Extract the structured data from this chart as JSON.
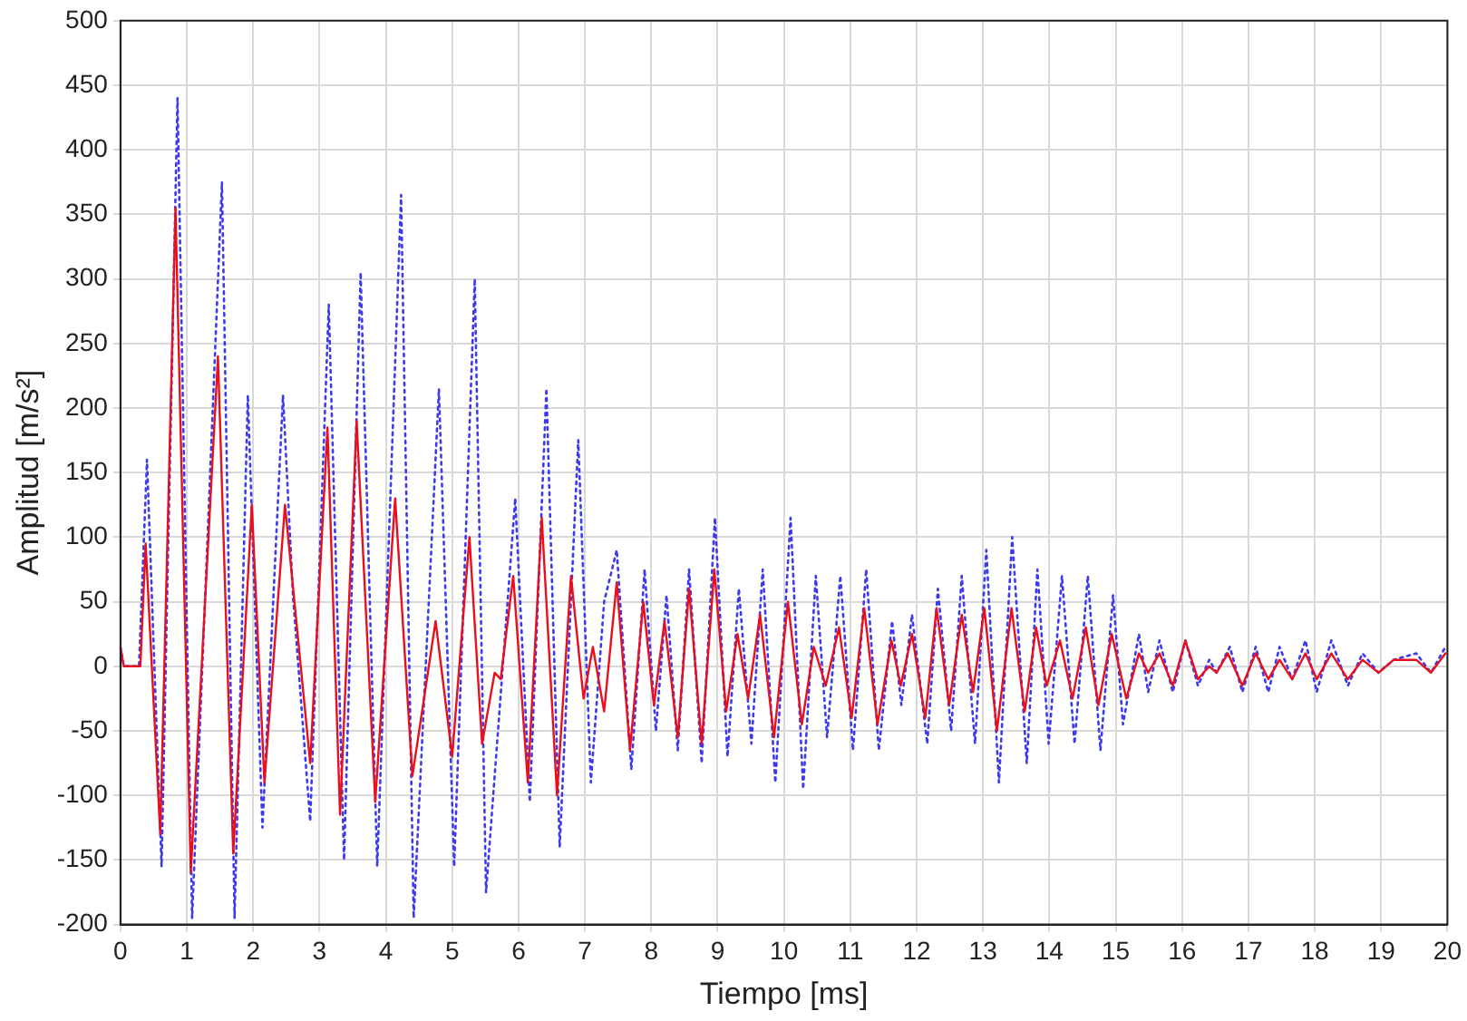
{
  "chart_data": {
    "type": "line",
    "xlabel": "Tiempo [ms]",
    "ylabel": "Amplitud [m/s²]",
    "xlim": [
      0,
      20
    ],
    "ylim": [
      -200,
      500
    ],
    "xticks": [
      0,
      1,
      2,
      3,
      4,
      5,
      6,
      7,
      8,
      9,
      10,
      11,
      12,
      13,
      14,
      15,
      16,
      17,
      18,
      19,
      20
    ],
    "yticks": [
      -200,
      -150,
      -100,
      -50,
      0,
      50,
      100,
      150,
      200,
      250,
      300,
      350,
      400,
      450,
      500
    ],
    "grid": true,
    "legend": false,
    "marker": "none",
    "series": [
      {
        "color": "#3a3af0",
        "line_style": "dotted",
        "x": [
          0,
          0.05,
          0.28,
          0.4,
          0.62,
          0.86,
          1.08,
          1.53,
          1.72,
          1.92,
          2.14,
          2.45,
          2.6,
          2.86,
          3.14,
          3.37,
          3.62,
          3.87,
          4.23,
          4.42,
          4.8,
          5.03,
          5.34,
          5.51,
          5.95,
          6.17,
          6.42,
          6.62,
          6.9,
          7.09,
          7.29,
          7.48,
          7.7,
          7.9,
          8.07,
          8.23,
          8.4,
          8.57,
          8.76,
          8.96,
          9.15,
          9.32,
          9.51,
          9.68,
          9.87,
          10.1,
          10.29,
          10.48,
          10.65,
          10.85,
          11.04,
          11.24,
          11.43,
          11.63,
          11.77,
          11.93,
          12.16,
          12.32,
          12.52,
          12.68,
          12.88,
          13.05,
          13.24,
          13.44,
          13.66,
          13.82,
          13.99,
          14.19,
          14.38,
          14.58,
          14.77,
          14.96,
          15.11,
          15.35,
          15.49,
          15.66,
          15.86,
          16.05,
          16.24,
          16.41,
          16.52,
          16.72,
          16.91,
          17.11,
          17.3,
          17.47,
          17.66,
          17.86,
          18.03,
          18.25,
          18.5,
          18.72,
          18.96,
          19.19,
          19.53,
          19.75,
          19.97
        ],
        "values": [
          15,
          0,
          0,
          160,
          -155,
          440,
          -195,
          375,
          -195,
          210,
          -125,
          210,
          55,
          -120,
          280,
          -150,
          305,
          -155,
          365,
          -195,
          215,
          -155,
          300,
          -175,
          130,
          -105,
          215,
          -140,
          175,
          -90,
          50,
          90,
          -80,
          75,
          -50,
          55,
          -65,
          75,
          -75,
          115,
          -70,
          60,
          -60,
          75,
          -90,
          115,
          -95,
          70,
          -55,
          70,
          -65,
          75,
          -65,
          35,
          -30,
          40,
          -60,
          60,
          -50,
          70,
          -60,
          90,
          -90,
          100,
          -75,
          75,
          -60,
          70,
          -60,
          70,
          -65,
          55,
          -45,
          25,
          -20,
          20,
          -20,
          20,
          -15,
          5,
          -5,
          15,
          -20,
          15,
          -20,
          15,
          -10,
          20,
          -20,
          20,
          -15,
          10,
          -5,
          5,
          10,
          -5,
          15
        ]
      },
      {
        "color": "#e8101e",
        "line_style": "solid",
        "x": [
          0,
          0.05,
          0.3,
          0.38,
          0.6,
          0.83,
          1.06,
          1.47,
          1.7,
          1.98,
          2.17,
          2.48,
          2.86,
          3.12,
          3.31,
          3.56,
          3.84,
          4.14,
          4.4,
          4.75,
          5.0,
          5.26,
          5.45,
          5.64,
          5.73,
          5.92,
          6.14,
          6.35,
          6.58,
          6.79,
          6.98,
          7.12,
          7.29,
          7.48,
          7.68,
          7.88,
          8.04,
          8.2,
          8.4,
          8.57,
          8.76,
          8.95,
          9.13,
          9.3,
          9.46,
          9.64,
          9.85,
          10.06,
          10.27,
          10.45,
          10.63,
          10.83,
          11.02,
          11.21,
          11.41,
          11.62,
          11.76,
          11.93,
          12.13,
          12.3,
          12.49,
          12.68,
          12.85,
          13.02,
          13.21,
          13.43,
          13.63,
          13.8,
          13.96,
          14.16,
          14.35,
          14.55,
          14.74,
          14.94,
          15.16,
          15.35,
          15.49,
          15.66,
          15.86,
          16.05,
          16.24,
          16.41,
          16.52,
          16.69,
          16.91,
          17.11,
          17.3,
          17.47,
          17.66,
          17.86,
          18.03,
          18.25,
          18.5,
          18.72,
          18.96,
          19.19,
          19.53,
          19.75,
          19.97
        ],
        "values": [
          15,
          0,
          0,
          95,
          -130,
          355,
          -160,
          240,
          -145,
          125,
          -90,
          125,
          -75,
          185,
          -115,
          190,
          -105,
          130,
          -85,
          35,
          -70,
          100,
          -60,
          -5,
          -10,
          70,
          -90,
          115,
          -100,
          70,
          -25,
          15,
          -35,
          65,
          -65,
          50,
          -30,
          35,
          -55,
          60,
          -60,
          75,
          -35,
          25,
          -25,
          40,
          -55,
          50,
          -45,
          15,
          -15,
          30,
          -40,
          45,
          -45,
          20,
          -15,
          25,
          -40,
          45,
          -30,
          40,
          -20,
          45,
          -50,
          45,
          -35,
          30,
          -15,
          20,
          -25,
          30,
          -30,
          25,
          -25,
          10,
          -5,
          10,
          -15,
          20,
          -10,
          0,
          -5,
          10,
          -15,
          10,
          -10,
          5,
          -10,
          10,
          -10,
          10,
          -10,
          5,
          -5,
          5,
          5,
          -5,
          10
        ]
      }
    ]
  }
}
